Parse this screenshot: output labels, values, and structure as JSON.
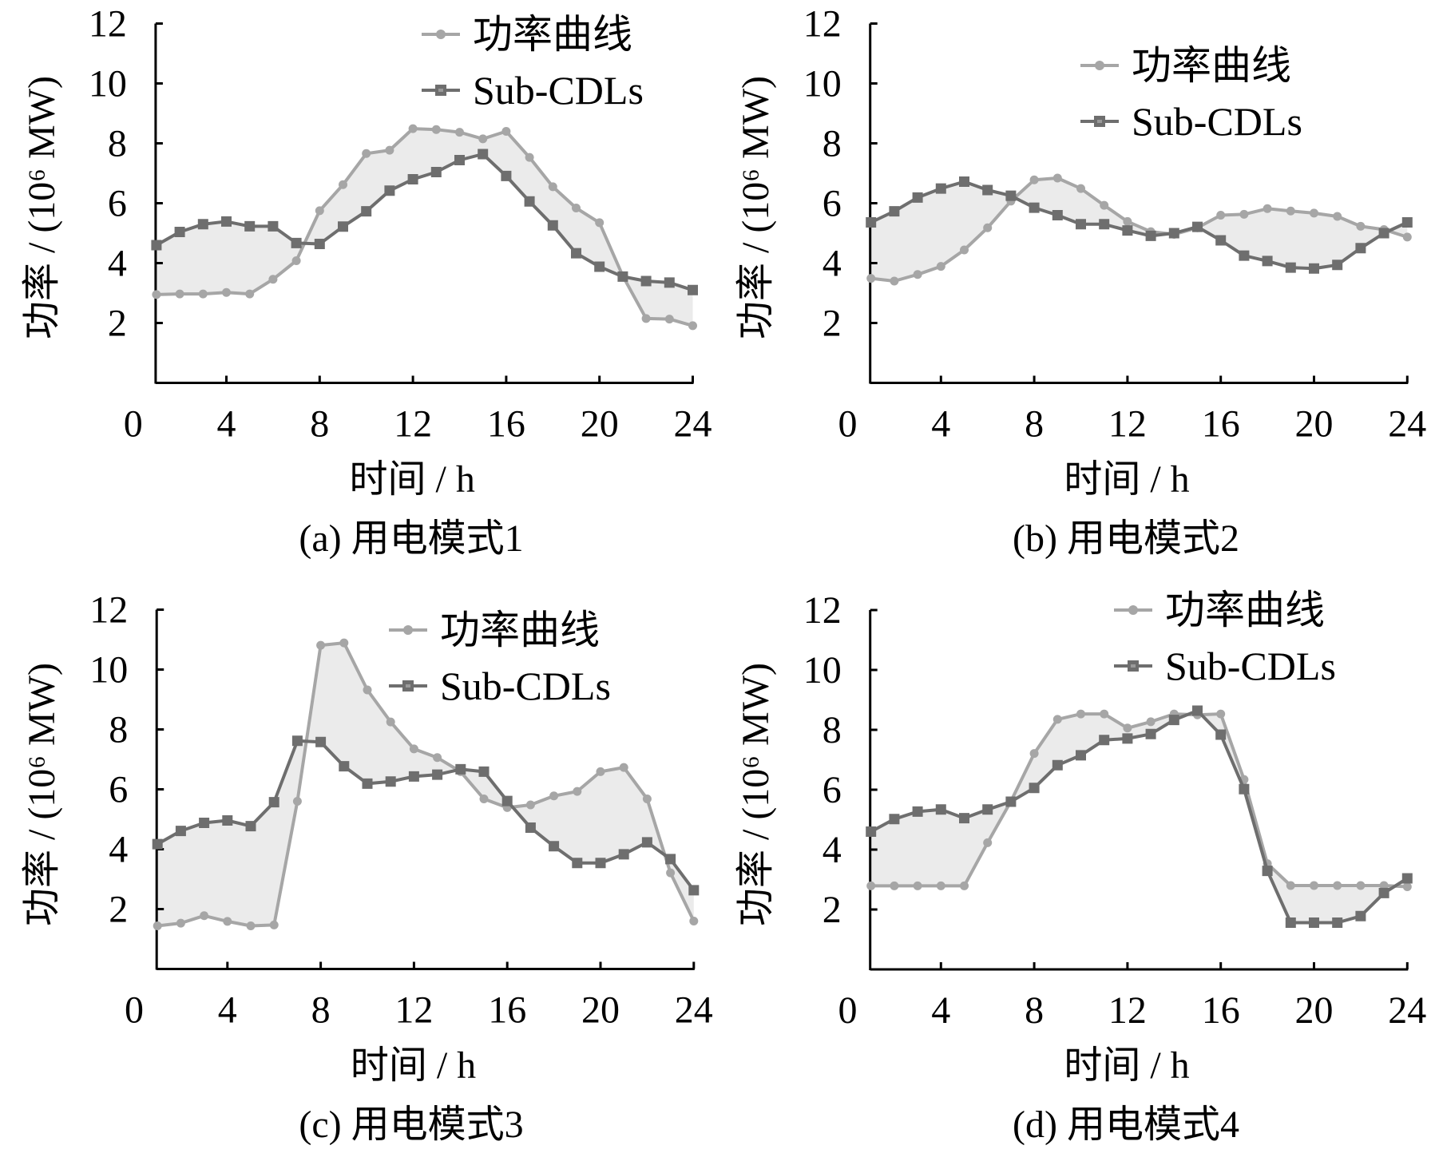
{
  "chart_data": [
    {
      "type": "line",
      "panel": "a",
      "caption": "(a)  用电模式1",
      "xlabel": "时间 / h",
      "ylabel": "功率 / (10⁶ MW)",
      "xlim": [
        0,
        24
      ],
      "ylim": [
        0,
        12
      ],
      "xticks": [
        "0",
        "4",
        "8",
        "12",
        "16",
        "20",
        "24"
      ],
      "yticks": [
        "2",
        "4",
        "6",
        "8",
        "10",
        "12"
      ],
      "legend_position": "top-right",
      "fill_between_series": true,
      "x": [
        1,
        2,
        3,
        4,
        5,
        6,
        7,
        8,
        9,
        10,
        11,
        12,
        13,
        14,
        15,
        16,
        17,
        18,
        19,
        20,
        21,
        22,
        23,
        24
      ],
      "series": [
        {
          "name": "功率曲线",
          "marker": "circle",
          "color": "#a6a6a6",
          "values": [
            2.95,
            2.97,
            2.97,
            3.02,
            2.97,
            3.46,
            4.08,
            5.75,
            6.62,
            7.66,
            7.77,
            8.49,
            8.46,
            8.37,
            8.15,
            8.4,
            7.53,
            6.55,
            5.84,
            5.35,
            3.57,
            2.15,
            2.13,
            1.91
          ]
        },
        {
          "name": "Sub-CDLs",
          "marker": "square",
          "color": "#6e6e6e",
          "values": [
            4.6,
            5.04,
            5.3,
            5.39,
            5.23,
            5.23,
            4.67,
            4.64,
            5.22,
            5.73,
            6.42,
            6.8,
            7.04,
            7.44,
            7.64,
            6.91,
            6.06,
            5.26,
            4.33,
            3.88,
            3.55,
            3.4,
            3.35,
            3.1
          ]
        }
      ]
    },
    {
      "type": "line",
      "panel": "b",
      "caption": "(b)  用电模式2",
      "xlabel": "时间 / h",
      "ylabel": "功率 / (10⁶ MW)",
      "xlim": [
        0,
        24
      ],
      "ylim": [
        0,
        12
      ],
      "xticks": [
        "0",
        "4",
        "8",
        "12",
        "16",
        "20",
        "24"
      ],
      "yticks": [
        "2",
        "4",
        "6",
        "8",
        "10",
        "12"
      ],
      "legend_position": "top-right",
      "fill_between_series": true,
      "x": [
        1,
        2,
        3,
        4,
        5,
        6,
        7,
        8,
        9,
        10,
        11,
        12,
        13,
        14,
        15,
        16,
        17,
        18,
        19,
        20,
        21,
        22,
        23,
        24
      ],
      "series": [
        {
          "name": "功率曲线",
          "marker": "circle",
          "color": "#a6a6a6",
          "values": [
            3.49,
            3.4,
            3.62,
            3.89,
            4.44,
            5.18,
            6.07,
            6.78,
            6.84,
            6.49,
            5.93,
            5.39,
            5.05,
            4.96,
            5.18,
            5.6,
            5.63,
            5.82,
            5.74,
            5.67,
            5.56,
            5.23,
            5.12,
            4.87
          ]
        },
        {
          "name": "Sub-CDLs",
          "marker": "square",
          "color": "#6e6e6e",
          "values": [
            5.36,
            5.73,
            6.19,
            6.49,
            6.72,
            6.44,
            6.25,
            5.85,
            5.6,
            5.3,
            5.3,
            5.09,
            4.91,
            5.0,
            5.21,
            4.76,
            4.25,
            4.07,
            3.85,
            3.82,
            3.94,
            4.5,
            5.0,
            5.36
          ]
        }
      ]
    },
    {
      "type": "line",
      "panel": "c",
      "caption": "(c)  用电模式3",
      "xlabel": "时间 / h",
      "ylabel": "功率 / (10⁶ MW)",
      "xlim": [
        0,
        24
      ],
      "ylim": [
        0,
        12
      ],
      "xticks": [
        "0",
        "4",
        "8",
        "12",
        "16",
        "20",
        "24"
      ],
      "yticks": [
        "2",
        "4",
        "6",
        "8",
        "10",
        "12"
      ],
      "legend_position": "top-right",
      "fill_between_series": true,
      "x": [
        1,
        2,
        3,
        4,
        5,
        6,
        7,
        8,
        9,
        10,
        11,
        12,
        13,
        14,
        15,
        16,
        17,
        18,
        19,
        20,
        21,
        22,
        23,
        24
      ],
      "series": [
        {
          "name": "功率曲线",
          "marker": "circle",
          "color": "#a6a6a6",
          "values": [
            1.44,
            1.53,
            1.78,
            1.59,
            1.44,
            1.47,
            5.6,
            10.81,
            10.89,
            9.32,
            8.25,
            7.35,
            7.06,
            6.59,
            5.68,
            5.39,
            5.48,
            5.78,
            5.93,
            6.59,
            6.73,
            5.68,
            3.21,
            1.6
          ]
        },
        {
          "name": "Sub-CDLs",
          "marker": "square",
          "color": "#6e6e6e",
          "values": [
            4.17,
            4.61,
            4.88,
            4.96,
            4.77,
            5.57,
            7.62,
            7.58,
            6.77,
            6.19,
            6.26,
            6.43,
            6.49,
            6.67,
            6.59,
            5.61,
            4.72,
            4.1,
            3.54,
            3.54,
            3.83,
            4.23,
            3.67,
            2.63
          ]
        }
      ]
    },
    {
      "type": "line",
      "panel": "d",
      "caption": "(d)  用电模式4",
      "xlabel": "时间 / h",
      "ylabel": "功率 / (10⁶ MW)",
      "xlim": [
        0,
        24
      ],
      "ylim": [
        0,
        12
      ],
      "xticks": [
        "0",
        "4",
        "8",
        "12",
        "16",
        "20",
        "24"
      ],
      "yticks": [
        "2",
        "4",
        "6",
        "8",
        "10",
        "12"
      ],
      "legend_position": "top-right",
      "fill_between_series": true,
      "x": [
        1,
        2,
        3,
        4,
        5,
        6,
        7,
        8,
        9,
        10,
        11,
        12,
        13,
        14,
        15,
        16,
        17,
        18,
        19,
        20,
        21,
        22,
        23,
        24
      ],
      "series": [
        {
          "name": "功率曲线",
          "marker": "circle",
          "color": "#a6a6a6",
          "values": [
            2.79,
            2.79,
            2.79,
            2.79,
            2.79,
            4.23,
            5.61,
            7.21,
            8.35,
            8.53,
            8.53,
            8.06,
            8.27,
            8.53,
            8.5,
            8.53,
            6.34,
            3.53,
            2.8,
            2.8,
            2.8,
            2.8,
            2.8,
            2.76
          ]
        },
        {
          "name": "Sub-CDLs",
          "marker": "square",
          "color": "#6e6e6e",
          "values": [
            4.6,
            5.02,
            5.27,
            5.34,
            5.05,
            5.34,
            5.6,
            6.06,
            6.82,
            7.15,
            7.66,
            7.71,
            7.86,
            8.33,
            8.64,
            7.84,
            6.02,
            3.29,
            1.56,
            1.56,
            1.56,
            1.78,
            2.55,
            3.04
          ]
        }
      ]
    }
  ],
  "colors": {
    "fill": "#ebebeb",
    "power_line": "#a6a6a6",
    "subcdl_line": "#6e6e6e",
    "axis": "#000000"
  }
}
